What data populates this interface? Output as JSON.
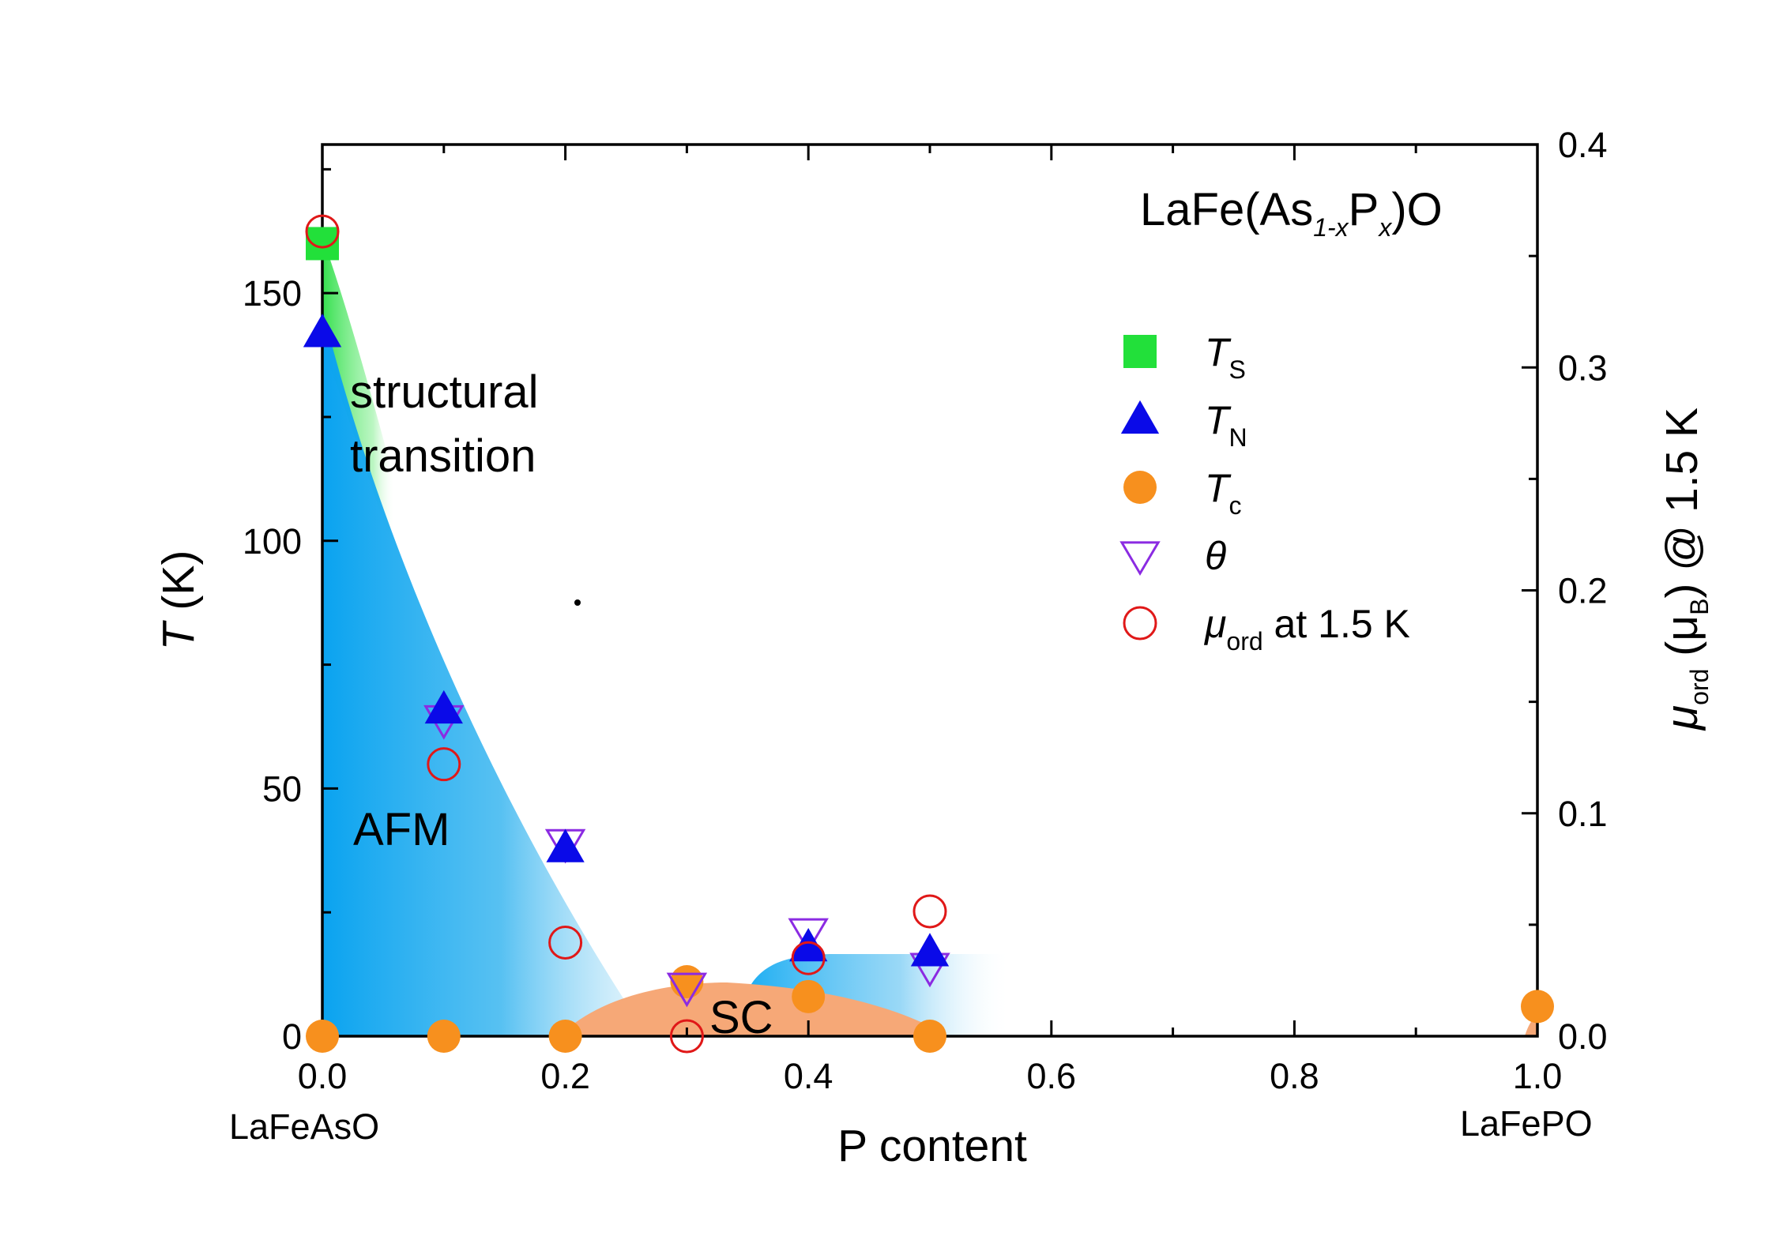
{
  "chart_data": {
    "type": "scatter",
    "title": "LaFe(As1-xPx)O",
    "title_parts": {
      "base": "LaFe(As",
      "sub1": "1-x",
      "mid": "P",
      "sub2": "x",
      "end": ")O"
    },
    "xlabel": "P content",
    "ylabel_left": {
      "italic": "T",
      "rest": " (K)"
    },
    "ylabel_right": {
      "mu": "μ",
      "sub": "ord",
      "mid": " (μ",
      "subB": "B",
      "end": ") @ 1.5 K"
    },
    "xlim": [
      0,
      1
    ],
    "ylim_left": [
      0,
      180
    ],
    "ylim_right": [
      0,
      0.4
    ],
    "x_ticks": [
      "0.0",
      "0.2",
      "0.4",
      "0.6",
      "0.8",
      "1.0"
    ],
    "y_ticks_left": [
      "0",
      "50",
      "100",
      "150"
    ],
    "y_ticks_right": [
      "0.0",
      "0.1",
      "0.2",
      "0.3",
      "0.4"
    ],
    "x_end_labels": {
      "left": "LaFeAsO",
      "right": "LaFePO"
    },
    "region_labels": {
      "structural_1": "structural",
      "structural_2": "transition",
      "afm": "AFM",
      "sc": "SC"
    },
    "legend_placement": "right",
    "legend": [
      {
        "symbol": "square-filled",
        "color": "#22e03a",
        "main": "T",
        "sub": "S",
        "rest": ""
      },
      {
        "symbol": "triangle-up-filled",
        "color": "#0a0ae8",
        "main": "T",
        "sub": "N",
        "rest": ""
      },
      {
        "symbol": "circle-filled",
        "color": "#f7901e",
        "main": "T",
        "sub": "c",
        "rest": ""
      },
      {
        "symbol": "triangle-down-open",
        "color": "#8b2be2",
        "main": "θ",
        "sub": "",
        "rest": ""
      },
      {
        "symbol": "circle-open",
        "color": "#e01818",
        "main": "μ",
        "sub": "ord",
        "rest": " at 1.5 K"
      }
    ],
    "series": [
      {
        "key": "Ts",
        "symbol": "square-filled",
        "color": "#22e03a",
        "axis": "left",
        "points": [
          [
            0.0,
            160
          ]
        ]
      },
      {
        "key": "TN",
        "symbol": "triangle-up-filled",
        "color": "#0a0ae8",
        "axis": "left",
        "points": [
          [
            0.0,
            142
          ],
          [
            0.1,
            66
          ],
          [
            0.2,
            38
          ],
          [
            0.4,
            18
          ],
          [
            0.5,
            17
          ]
        ]
      },
      {
        "key": "theta",
        "symbol": "triangle-down-open",
        "color": "#8b2be2",
        "axis": "left",
        "points": [
          [
            0.1,
            64
          ],
          [
            0.2,
            39
          ],
          [
            0.3,
            10
          ],
          [
            0.4,
            21
          ],
          [
            0.5,
            14
          ]
        ]
      },
      {
        "key": "Tc",
        "symbol": "circle-filled",
        "color": "#f7901e",
        "axis": "left",
        "points": [
          [
            0.0,
            0
          ],
          [
            0.1,
            0
          ],
          [
            0.2,
            0
          ],
          [
            0.3,
            11
          ],
          [
            0.4,
            8
          ],
          [
            0.5,
            0
          ],
          [
            1.0,
            6
          ]
        ]
      },
      {
        "key": "mu_ord",
        "symbol": "circle-open",
        "color": "#e01818",
        "axis": "right",
        "points": [
          [
            0.0,
            0.361
          ],
          [
            0.1,
            0.122
          ],
          [
            0.2,
            0.042
          ],
          [
            0.3,
            0.0
          ],
          [
            0.4,
            0.035
          ],
          [
            0.5,
            0.056
          ]
        ]
      }
    ],
    "phase_regions": {
      "afm_color": "#12aaf2",
      "structural_color": "#3ee85a",
      "sc_color": "#f6a877"
    }
  }
}
